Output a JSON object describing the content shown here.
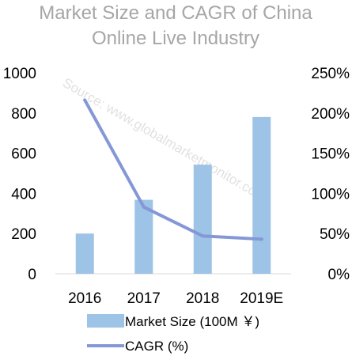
{
  "chart_data": {
    "type": "bar",
    "title_lines": [
      "Market Size and CAGR of China",
      "Online Live Industry"
    ],
    "watermark": "Source: www.globalmarketmonitor.com",
    "categories": [
      "2016",
      "2017",
      "2018",
      "2019E"
    ],
    "series": [
      {
        "name": "Market Size (100M ￥)",
        "type": "bar",
        "axis": "left",
        "color": "#9dc3e6",
        "values": [
          200,
          368,
          543,
          780
        ]
      },
      {
        "name": "CAGR (%)",
        "type": "line",
        "axis": "right",
        "color": "#8497d6",
        "values": [
          216,
          83,
          47,
          43
        ]
      }
    ],
    "y_left": {
      "min": 0,
      "max": 1000,
      "ticks": [
        "0",
        "200",
        "400",
        "600",
        "800",
        "1000"
      ]
    },
    "y_right": {
      "min": 0,
      "max": 250,
      "ticks": [
        "0%",
        "50%",
        "100%",
        "150%",
        "200%",
        "250%"
      ]
    },
    "grid": false,
    "legend_position": "bottom"
  }
}
